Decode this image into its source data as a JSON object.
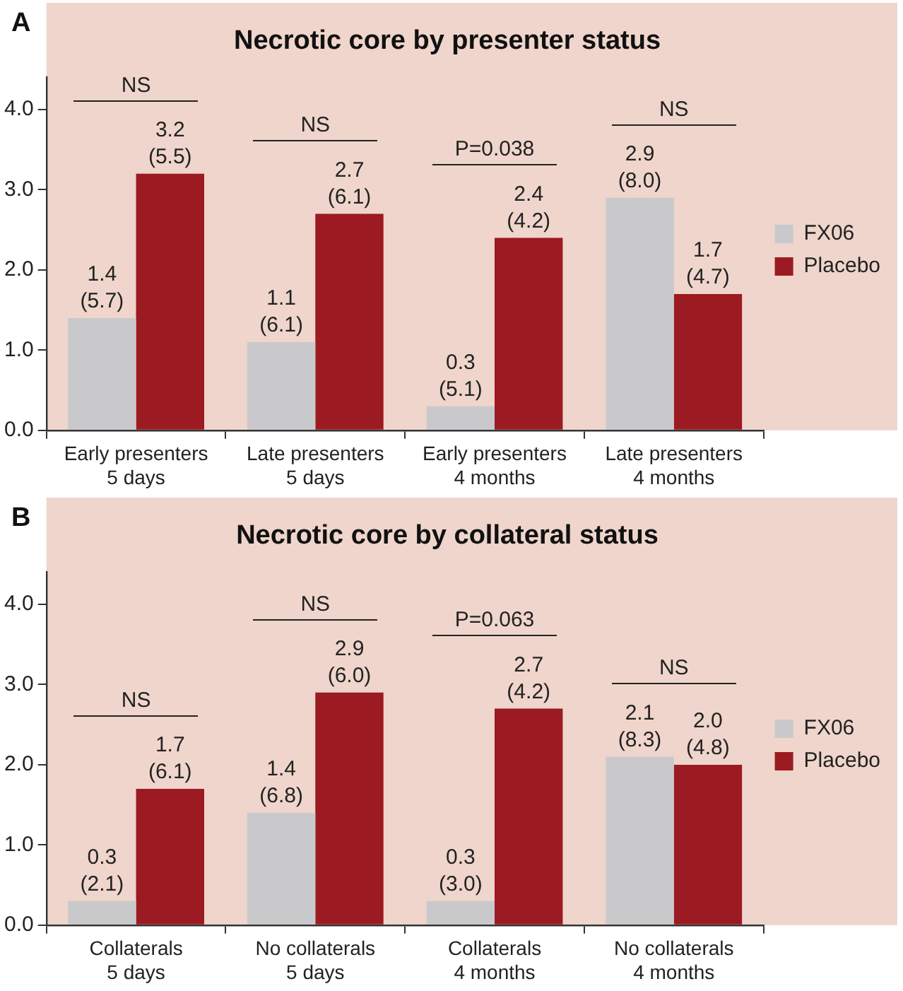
{
  "chart_data": [
    {
      "type": "bar",
      "title": "Necrotic core by presenter status",
      "categories": [
        "Early presenters\n5 days",
        "Late presenters\n5 days",
        "Early presenters\n4 months",
        "Late presenters\n4 months"
      ],
      "series": [
        {
          "name": "FX06",
          "color": "#c9c9cb",
          "values": [
            1.4,
            1.1,
            0.3,
            2.9
          ],
          "value_labels": [
            "1.4\n(5.7)",
            "1.1\n(6.1)",
            "0.3\n(5.1)",
            "2.9\n(8.0)"
          ]
        },
        {
          "name": "Placebo",
          "color": "#9c1a21",
          "values": [
            3.2,
            2.7,
            2.4,
            1.7
          ],
          "value_labels": [
            "3.2\n(5.5)",
            "2.7\n(6.1)",
            "2.4\n(4.2)",
            "1.7\n(4.7)"
          ]
        }
      ],
      "ylim": [
        0,
        4.4
      ],
      "yticks": [
        {
          "value": 0,
          "label": "0.0"
        },
        {
          "value": 1,
          "label": "1.0"
        },
        {
          "value": 2,
          "label": "2.0"
        },
        {
          "value": 3,
          "label": "3.0"
        },
        {
          "value": 4,
          "label": "4.0"
        }
      ],
      "grid": false,
      "legend": "right",
      "annotations": [
        "A",
        "NS",
        "NS",
        "P=0.038",
        "NS"
      ]
    },
    {
      "type": "bar",
      "title": "Necrotic core by collateral status",
      "categories": [
        "Collaterals\n5 days",
        "No collaterals\n5 days",
        "Collaterals\n4 months",
        "No collaterals\n4 months"
      ],
      "series": [
        {
          "name": "FX06",
          "color": "#c9c9cb",
          "values": [
            0.3,
            1.4,
            0.3,
            2.1
          ],
          "value_labels": [
            "0.3\n(2.1)",
            "1.4\n(6.8)",
            "0.3\n(3.0)",
            "2.1\n(8.3)"
          ]
        },
        {
          "name": "Placebo",
          "color": "#9c1a21",
          "values": [
            1.7,
            2.9,
            2.7,
            2.0
          ],
          "value_labels": [
            "1.7\n(6.1)",
            "2.9\n(6.0)",
            "2.7\n(4.2)",
            "2.0\n(4.8)"
          ]
        }
      ],
      "ylim": [
        0,
        4.4
      ],
      "yticks": [
        {
          "value": 0,
          "label": "0.0"
        },
        {
          "value": 1,
          "label": "1.0"
        },
        {
          "value": 2,
          "label": "2.0"
        },
        {
          "value": 3,
          "label": "3.0"
        },
        {
          "value": 4,
          "label": "4.0"
        }
      ],
      "grid": false,
      "legend": "right",
      "annotations": [
        "B",
        "NS",
        "NS",
        "P=0.063",
        "NS"
      ]
    }
  ]
}
